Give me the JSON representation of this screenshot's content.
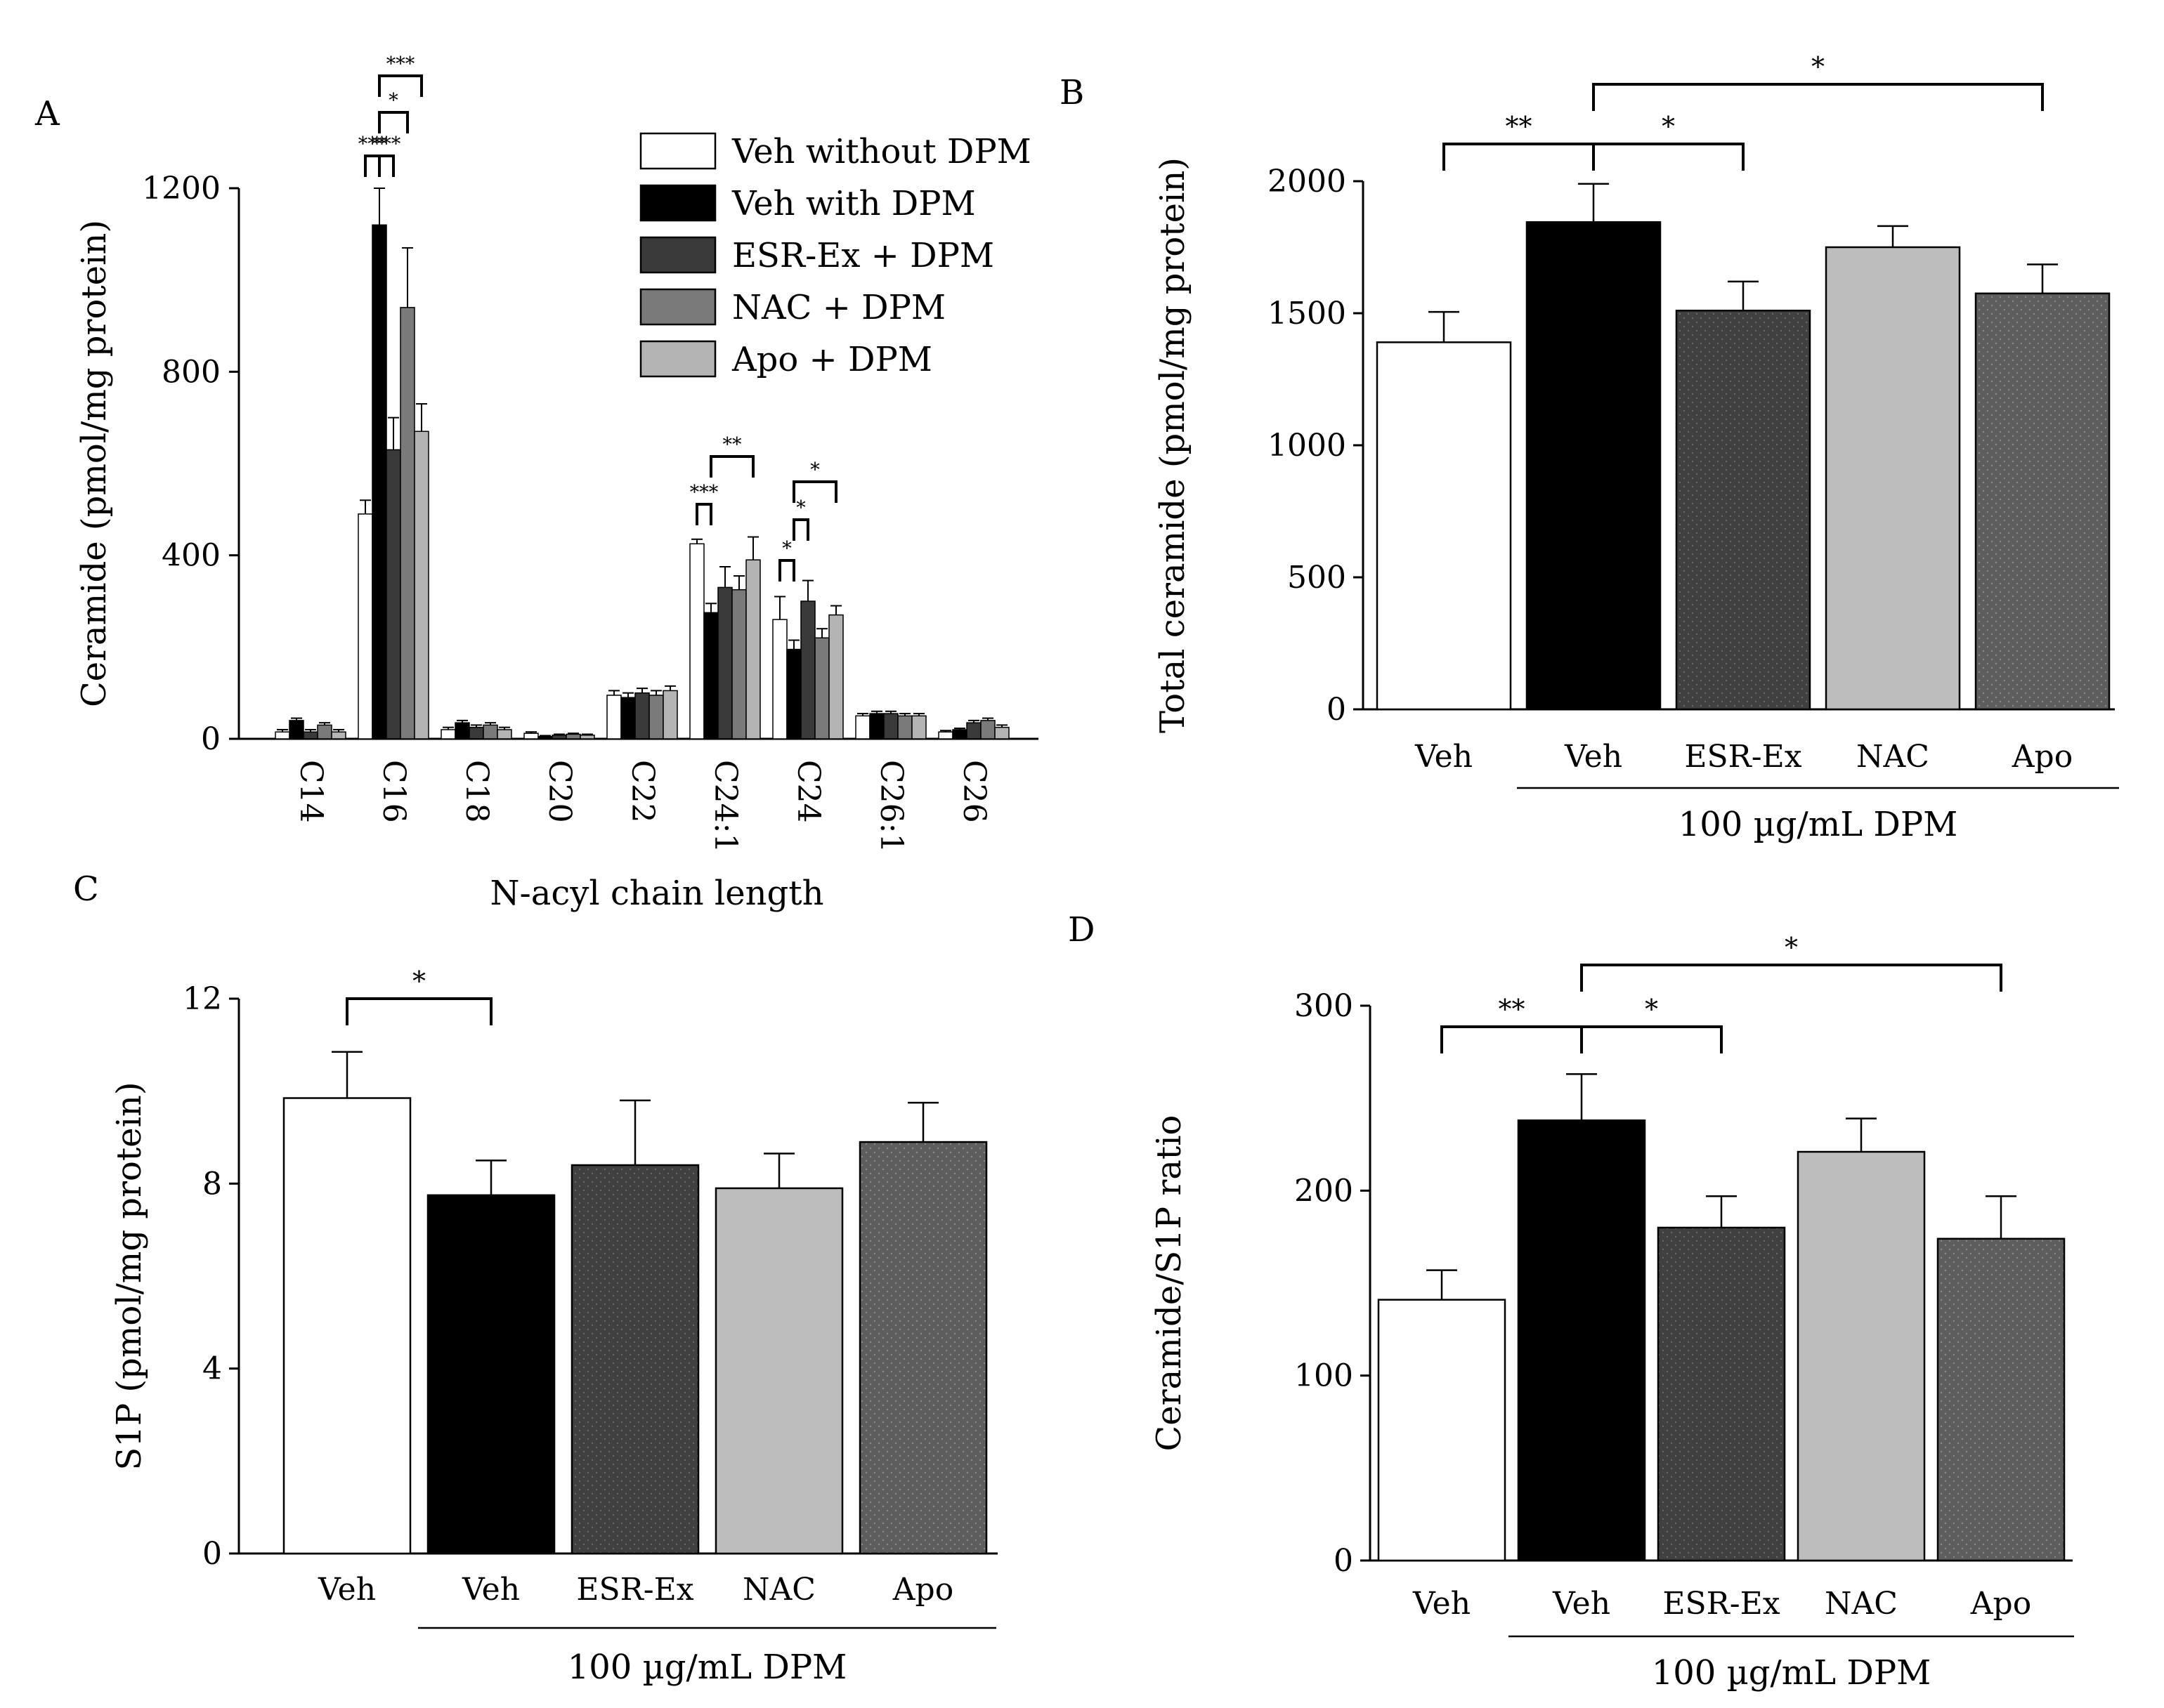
{
  "colors": {
    "veh_without": "#ffffff",
    "veh_with": "#000000",
    "esr_ex": "#3a3a3a",
    "nac": "#7a7a7a",
    "apo": "#b4b4b4",
    "nac_bar_bcd": "#bdbdbd",
    "apo_bar_bcd": "#5d5d5d",
    "esr_bar_bcd": "#404040"
  },
  "chart_data": [
    {
      "panel": "A",
      "type": "bar",
      "ylabel": "Ceramide (pmol/mg protein)",
      "xlabel": "N-acyl chain length",
      "ylim": [
        0,
        1200
      ],
      "yticks": [
        "0",
        "400",
        "800",
        "1200"
      ],
      "categories": [
        "C14",
        "C16",
        "C18",
        "C20",
        "C22",
        "C24:1",
        "C24",
        "C26:1",
        "C26"
      ],
      "series": [
        {
          "name": "Veh without DPM",
          "values": [
            15,
            490,
            20,
            12,
            95,
            425,
            260,
            50,
            15
          ],
          "errors": [
            5,
            30,
            5,
            3,
            10,
            10,
            50,
            5,
            3
          ]
        },
        {
          "name": "Veh with DPM",
          "values": [
            40,
            1120,
            35,
            5,
            90,
            275,
            195,
            55,
            20
          ],
          "errors": [
            5,
            80,
            5,
            2,
            10,
            20,
            20,
            5,
            3
          ]
        },
        {
          "name": "ESR-Ex + DPM",
          "values": [
            15,
            630,
            25,
            8,
            100,
            330,
            300,
            55,
            35
          ],
          "errors": [
            5,
            70,
            5,
            2,
            10,
            45,
            45,
            5,
            5
          ]
        },
        {
          "name": "NAC + DPM",
          "values": [
            30,
            940,
            30,
            10,
            95,
            325,
            220,
            50,
            40
          ],
          "errors": [
            5,
            130,
            5,
            2,
            10,
            30,
            20,
            5,
            5
          ]
        },
        {
          "name": "Apo + DPM",
          "values": [
            15,
            670,
            20,
            8,
            105,
            390,
            270,
            50,
            25
          ],
          "errors": [
            5,
            60,
            5,
            2,
            10,
            50,
            20,
            5,
            5
          ]
        }
      ],
      "significance": {
        "c16": [
          "***",
          "*",
          "***",
          "***"
        ],
        "c241": [
          "***",
          "**"
        ],
        "c24": [
          "*",
          "*",
          "*"
        ]
      },
      "legend_placement": "top-right"
    },
    {
      "panel": "B",
      "type": "bar",
      "ylabel": "Total ceramide (pmol/mg protein)",
      "ylim": [
        0,
        2000
      ],
      "yticks": [
        "0",
        "500",
        "1000",
        "1500",
        "2000"
      ],
      "categories": [
        "Veh",
        "Veh",
        "ESR-Ex",
        "NAC",
        "Apo"
      ],
      "values": [
        1390,
        1845,
        1510,
        1750,
        1575
      ],
      "errors": [
        115,
        145,
        110,
        80,
        110
      ],
      "group_label": "100 µg/mL DPM",
      "significance": [
        "**",
        "*",
        "*"
      ]
    },
    {
      "panel": "C",
      "type": "bar",
      "ylabel": "S1P (pmol/mg protein)",
      "ylim": [
        0,
        12
      ],
      "yticks": [
        "0",
        "4",
        "8",
        "12"
      ],
      "categories": [
        "Veh",
        "Veh",
        "ESR-Ex",
        "NAC",
        "Apo"
      ],
      "values": [
        9.85,
        7.75,
        8.4,
        7.9,
        8.9
      ],
      "errors": [
        1.0,
        0.75,
        1.4,
        0.75,
        0.85
      ],
      "group_label": "100 µg/mL DPM",
      "significance": [
        "*"
      ]
    },
    {
      "panel": "D",
      "type": "bar",
      "ylabel": "Ceramide/S1P ratio",
      "ylim": [
        0,
        300
      ],
      "yticks": [
        "0",
        "100",
        "200",
        "300"
      ],
      "categories": [
        "Veh",
        "Veh",
        "ESR-Ex",
        "NAC",
        "Apo"
      ],
      "values": [
        141,
        238,
        180,
        221,
        174
      ],
      "errors": [
        16,
        25,
        17,
        18,
        23
      ],
      "group_label": "100 µg/mL DPM",
      "significance": [
        "**",
        "*",
        "*"
      ]
    }
  ]
}
